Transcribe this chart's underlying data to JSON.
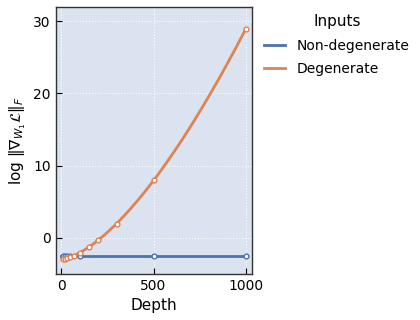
{
  "xlabel": "Depth",
  "ylabel": "log $\\|\\nabla_{W_1} \\mathcal{L}\\|_F$",
  "xlim": [
    -30,
    1030
  ],
  "ylim": [
    -5,
    32
  ],
  "xticks": [
    0,
    500,
    1000
  ],
  "yticks": [
    0,
    10,
    20,
    30
  ],
  "background_color": "#dce3f0",
  "grid_color": "white",
  "non_degenerate_color": "#4c72b0",
  "degenerate_color": "#dd8452",
  "legend_title": "Inputs",
  "legend_labels": [
    "Non-degenerate",
    "Degenerate"
  ],
  "non_degenerate_y": -2.5,
  "line_width": 2.0,
  "scatter_non_x": [
    10,
    20,
    30,
    50,
    100,
    500,
    1000
  ],
  "scatter_deg_x": [
    10,
    20,
    30,
    50,
    70,
    100,
    150,
    200,
    300,
    500,
    1000
  ],
  "deg_x_start": 5,
  "deg_y_start": -3.0,
  "deg_x_end": 1000,
  "deg_y_end": 29.0,
  "deg_power": 1.55
}
